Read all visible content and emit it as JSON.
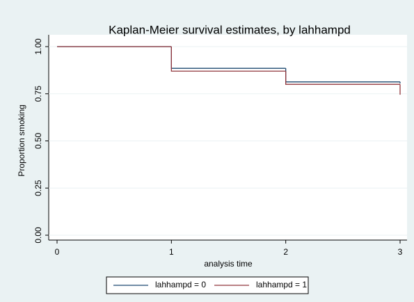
{
  "chart_data": {
    "type": "step",
    "title": "Kaplan-Meier survival estimates, by lahhampd",
    "x_label": "analysis time",
    "y_label": "Proportion smoking",
    "xlim": [
      0,
      3
    ],
    "xticks": [
      0,
      1,
      2,
      3
    ],
    "ylim": [
      0,
      1
    ],
    "yticks": [
      {
        "value": 0,
        "label": "0.00"
      },
      {
        "value": 0.25,
        "label": "0.25"
      },
      {
        "value": 0.5,
        "label": "0.50"
      },
      {
        "value": 0.75,
        "label": "0.75"
      },
      {
        "value": 1,
        "label": "1.00"
      }
    ],
    "grid": true,
    "legend": "bottom",
    "x": [
      0,
      1,
      2,
      3
    ],
    "series": [
      {
        "name": "lahhampd = 0",
        "color": "#1a476f",
        "values": [
          1.0,
          0.885,
          0.813,
          0.805
        ]
      },
      {
        "name": "lahhampd = 1",
        "color": "#90353b",
        "values": [
          1.0,
          0.87,
          0.8,
          0.745
        ]
      }
    ]
  }
}
